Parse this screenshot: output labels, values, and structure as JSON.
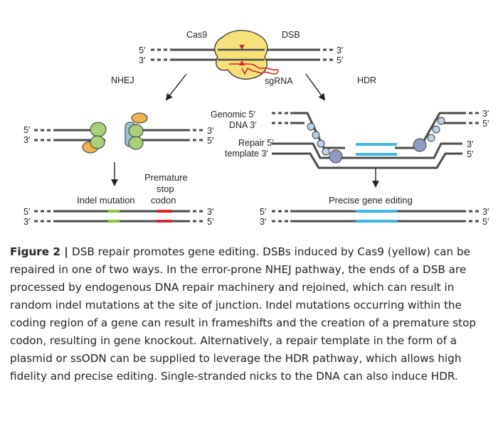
{
  "diagram": {
    "top": {
      "cas9": "Cas9",
      "dsb": "DSB",
      "sgrna": "sgRNA",
      "end5": "5′",
      "end3": "3′"
    },
    "nhej": {
      "title": "NHEJ",
      "indel": "Indel mutation",
      "premature_line1": "Premature",
      "premature_line2": "stop",
      "premature_line3": "codon",
      "end5": "5′",
      "end3": "3′"
    },
    "hdr": {
      "title": "HDR",
      "genomic_line1": "Genomic 5′",
      "genomic_line2": "DNA 3′",
      "repair_line1": "Repair 5′",
      "repair_line2": "template 3′",
      "precise": "Precise gene editing",
      "end5": "5′",
      "end3": "3′"
    },
    "colors": {
      "cas9": "#f7e27a",
      "dsb_marker": "#d6262f",
      "sgrna": "#d6262f",
      "ku_green": "#a9cf7a",
      "ku_orange": "#f2b24f",
      "ku_blue": "#9cc4d4",
      "indel": "#8cc63f",
      "stop_codon": "#d6262f",
      "repair": "#3fb7e0",
      "resection_protein": "#8f9bc2"
    }
  },
  "caption": {
    "label": "Figure 2 | ",
    "text": "DSB repair promotes gene editing. DSBs induced by Cas9 (yellow) can be repaired in one of two ways. In the error-prone NHEJ pathway, the ends of a DSB are processed by endogenous DNA repair machinery and rejoined, which can result in random indel mutations at the site of junction. Indel mutations occurring within the coding region of a gene can result in frameshifts and the creation of a premature stop codon, resulting in gene knockout. Alternatively, a repair template in the form of a plasmid or ssODN can be supplied to leverage the HDR pathway, which allows high fidelity and precise editing. Single-stranded nicks to the DNA can also induce HDR."
  }
}
